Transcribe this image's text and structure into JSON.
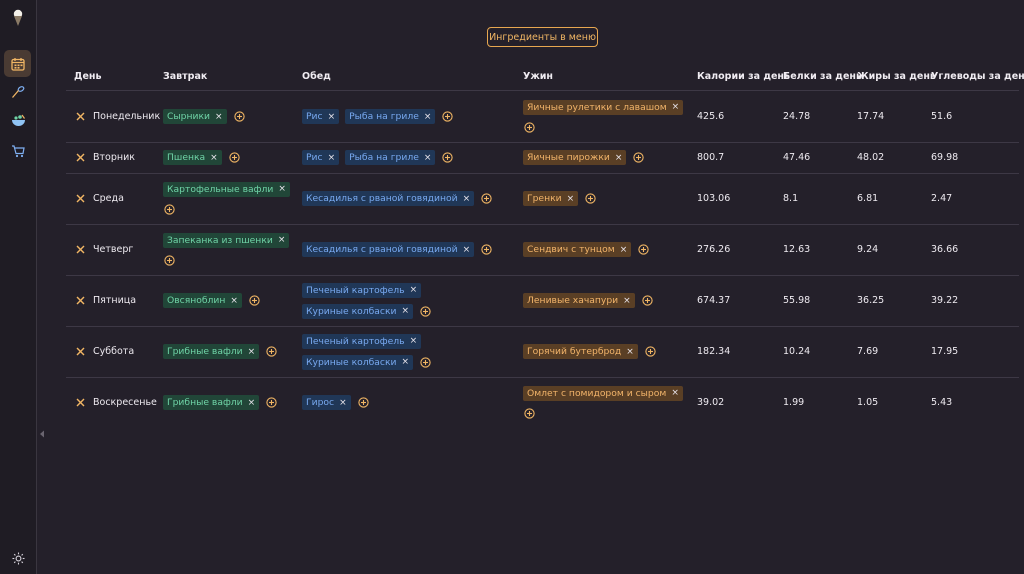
{
  "app": {
    "icons": [
      "ice-cream-logo-icon",
      "calendar-icon",
      "spoon-icon",
      "bowl-icon",
      "cart-icon",
      "sun-icon",
      "chevron-left-icon"
    ],
    "accent": "#e7a750"
  },
  "toolbar": {
    "ingredients_button": "Ингредиенты в меню"
  },
  "table": {
    "headers": {
      "day": "День",
      "breakfast": "Завтрак",
      "lunch": "Обед",
      "dinner": "Ужин",
      "calories": "Калории за день",
      "protein": "Белки за день",
      "fat": "Жиры за день",
      "carbs": "Углеводы за день"
    },
    "remove_glyph": "×",
    "rows": [
      {
        "day": "Понедельник",
        "breakfast": [
          "Сырники"
        ],
        "lunch": [
          "Рис",
          "Рыба на гриле"
        ],
        "dinner": [
          "Яичные рулетики с лавашом"
        ],
        "calories": "425.6",
        "protein": "24.78",
        "fat": "17.74",
        "carbs": "51.6"
      },
      {
        "day": "Вторник",
        "breakfast": [
          "Пшенка"
        ],
        "lunch": [
          "Рис",
          "Рыба на гриле"
        ],
        "dinner": [
          "Яичные пирожки"
        ],
        "calories": "800.7",
        "protein": "47.46",
        "fat": "48.02",
        "carbs": "69.98"
      },
      {
        "day": "Среда",
        "breakfast": [
          "Картофельные вафли"
        ],
        "lunch": [
          "Кесадилья с рваной говядиной"
        ],
        "dinner": [
          "Гренки"
        ],
        "calories": "103.06",
        "protein": "8.1",
        "fat": "6.81",
        "carbs": "2.47"
      },
      {
        "day": "Четверг",
        "breakfast": [
          "Запеканка из пшенки"
        ],
        "lunch": [
          "Кесадилья с рваной говядиной"
        ],
        "dinner": [
          "Сендвич с тунцом"
        ],
        "calories": "276.26",
        "protein": "12.63",
        "fat": "9.24",
        "carbs": "36.66"
      },
      {
        "day": "Пятница",
        "breakfast": [
          "Овсяноблин"
        ],
        "lunch": [
          "Печеный картофель",
          "Куриные колбаски"
        ],
        "dinner": [
          "Ленивые хачапури"
        ],
        "calories": "674.37",
        "protein": "55.98",
        "fat": "36.25",
        "carbs": "39.22"
      },
      {
        "day": "Суббота",
        "breakfast": [
          "Грибные вафли"
        ],
        "lunch": [
          "Печеный картофель",
          "Куриные колбаски"
        ],
        "dinner": [
          "Горячий бутерброд"
        ],
        "calories": "182.34",
        "protein": "10.24",
        "fat": "7.69",
        "carbs": "17.95"
      },
      {
        "day": "Воскресенье",
        "breakfast": [
          "Грибные вафли"
        ],
        "lunch": [
          "Гирос"
        ],
        "dinner": [
          "Омлет с помидором и сыром"
        ],
        "calories": "39.02",
        "protein": "1.99",
        "fat": "1.05",
        "carbs": "5.43"
      }
    ]
  }
}
